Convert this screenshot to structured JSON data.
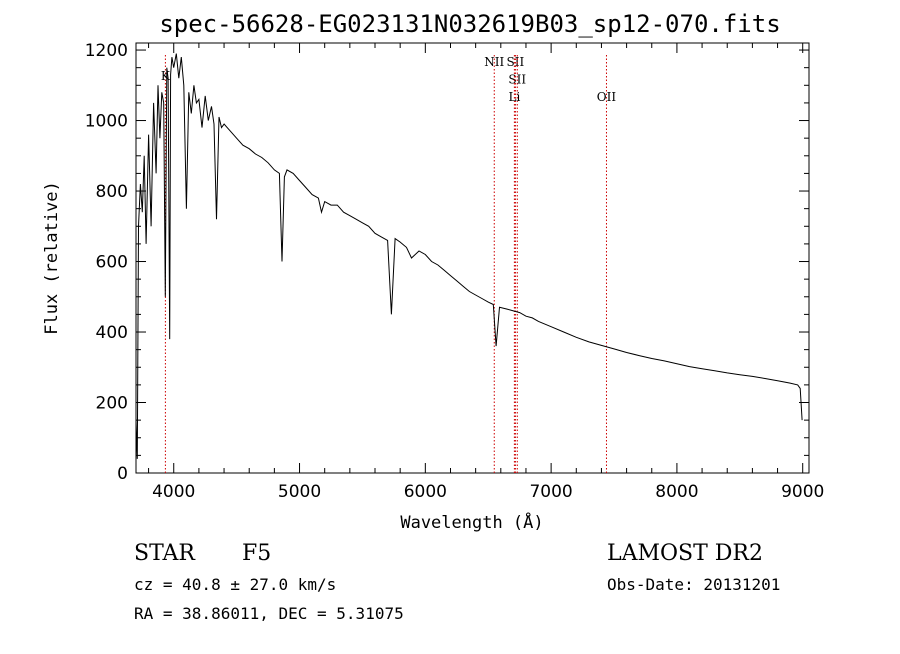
{
  "chart_data": {
    "type": "line",
    "title": "spec-56628-EG023131N032619B03_sp12-070.fits",
    "xlabel": "Wavelength (Å)",
    "ylabel": "Flux (relative)",
    "xlim": [
      3700,
      9050
    ],
    "ylim": [
      0,
      1220
    ],
    "x_ticks": [
      4000,
      5000,
      6000,
      7000,
      8000,
      9000
    ],
    "y_ticks": [
      0,
      200,
      400,
      600,
      800,
      1000,
      1200
    ],
    "grid": false,
    "series": [
      {
        "x": [
          3700,
          3710,
          3720,
          3735,
          3750,
          3765,
          3780,
          3800,
          3820,
          3840,
          3860,
          3875,
          3890,
          3905,
          3920,
          3933,
          3945,
          3955,
          3968,
          3975,
          3985,
          4000,
          4020,
          4040,
          4060,
          4080,
          4101,
          4120,
          4140,
          4160,
          4180,
          4200,
          4225,
          4250,
          4275,
          4300,
          4320,
          4340,
          4360,
          4380,
          4400,
          4450,
          4500,
          4550,
          4600,
          4650,
          4700,
          4750,
          4800,
          4840,
          4861,
          4880,
          4900,
          4950,
          5000,
          5050,
          5100,
          5150,
          5175,
          5200,
          5250,
          5300,
          5350,
          5400,
          5450,
          5500,
          5550,
          5600,
          5650,
          5700,
          5730,
          5760,
          5800,
          5850,
          5890,
          5950,
          6000,
          6050,
          6100,
          6150,
          6200,
          6250,
          6300,
          6350,
          6400,
          6450,
          6500,
          6540,
          6563,
          6590,
          6650,
          6700,
          6750,
          6800,
          6850,
          6900,
          7000,
          7100,
          7200,
          7300,
          7400,
          7500,
          7600,
          7700,
          7800,
          7900,
          8000,
          8100,
          8200,
          8300,
          8400,
          8500,
          8600,
          8700,
          8800,
          8900,
          8960,
          8980,
          8995
        ],
        "values": [
          150,
          40,
          700,
          820,
          740,
          900,
          650,
          960,
          700,
          1050,
          850,
          1100,
          950,
          1080,
          1050,
          500,
          1150,
          1120,
          380,
          1130,
          1180,
          1150,
          1190,
          1120,
          1180,
          1100,
          750,
          1080,
          1020,
          1100,
          1050,
          1060,
          980,
          1070,
          1000,
          1040,
          990,
          720,
          1010,
          980,
          990,
          970,
          950,
          930,
          920,
          905,
          895,
          880,
          860,
          850,
          600,
          840,
          860,
          850,
          830,
          810,
          790,
          780,
          740,
          770,
          760,
          760,
          740,
          730,
          720,
          710,
          700,
          680,
          670,
          660,
          450,
          665,
          655,
          640,
          610,
          630,
          620,
          600,
          590,
          575,
          560,
          545,
          530,
          515,
          505,
          495,
          485,
          478,
          360,
          470,
          465,
          460,
          455,
          445,
          440,
          430,
          415,
          400,
          385,
          372,
          362,
          352,
          342,
          333,
          325,
          318,
          310,
          302,
          296,
          290,
          284,
          279,
          274,
          268,
          262,
          255,
          250,
          240,
          150
        ]
      }
    ],
    "lines": [
      {
        "label": "K",
        "x": 3933.7,
        "y": 1115
      },
      {
        "label": "NII",
        "x": 6548.0,
        "y": 1155
      },
      {
        "label": "SII",
        "x": 6716.0,
        "y": 1155
      },
      {
        "label": "SII",
        "x": 6731.0,
        "y": 1105
      },
      {
        "label": "Li",
        "x": 6708.0,
        "y": 1055
      },
      {
        "label": "OII",
        "x": 7440.0,
        "y": 1055
      }
    ],
    "line_color": "#000000",
    "marker_color": "#cc0000"
  },
  "info": {
    "class": "STAR",
    "subclass": "F5",
    "cz": "cz = 40.8 ± 27.0 km/s",
    "radec": "RA =  38.86011, DEC =   5.31075",
    "survey": "LAMOST DR2",
    "obsdate": "Obs-Date: 20131201"
  }
}
